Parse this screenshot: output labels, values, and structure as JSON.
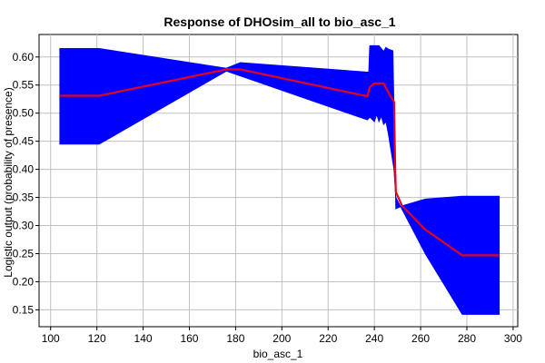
{
  "chart_data": {
    "type": "line",
    "title": "Response of DHOsim_all to bio_asc_1",
    "xlabel": "bio_asc_1",
    "ylabel": "Logistic output (probability of presence)",
    "xlim": [
      95,
      302
    ],
    "ylim": [
      0.12,
      0.64
    ],
    "xticks": [
      100,
      120,
      140,
      160,
      180,
      200,
      220,
      240,
      260,
      280,
      300
    ],
    "yticks": [
      0.15,
      0.2,
      0.25,
      0.3,
      0.35,
      0.4,
      0.45,
      0.5,
      0.55,
      0.6
    ],
    "ytick_labels": [
      "0.15",
      "0.20",
      "0.25",
      "0.30",
      "0.35",
      "0.40",
      "0.45",
      "0.50",
      "0.55",
      "0.60"
    ],
    "grid": true,
    "colors": {
      "band": "#0000ff",
      "line": "#e8001c",
      "grid": "#c0c0c0",
      "axis": "#000000"
    },
    "series": [
      {
        "kind": "mean",
        "x": [
          104,
          121,
          176,
          182,
          237,
          238,
          240,
          244,
          245,
          247,
          248.5,
          249,
          249.3,
          252,
          262,
          278,
          294
        ],
        "y": [
          0.531,
          0.531,
          0.578,
          0.578,
          0.53,
          0.546,
          0.553,
          0.553,
          0.545,
          0.53,
          0.52,
          0.4,
          0.36,
          0.335,
          0.293,
          0.247,
          0.247
        ]
      }
    ],
    "band": {
      "upper": {
        "x": [
          104,
          121,
          176,
          182,
          237,
          237.6,
          238,
          242,
          244,
          245,
          246,
          248,
          248.5,
          249.3,
          252,
          262,
          278,
          294
        ],
        "y": [
          0.615,
          0.615,
          0.58,
          0.59,
          0.573,
          0.573,
          0.62,
          0.62,
          0.61,
          0.617,
          0.614,
          0.611,
          0.5,
          0.33,
          0.335,
          0.347,
          0.352,
          0.352
        ]
      },
      "lower": {
        "x": [
          104,
          121,
          176,
          237,
          238,
          240,
          241,
          242,
          243,
          244,
          245,
          246,
          248.5,
          249.3,
          262,
          278,
          294
        ],
        "y": [
          0.445,
          0.445,
          0.575,
          0.488,
          0.493,
          0.485,
          0.498,
          0.485,
          0.495,
          0.48,
          0.485,
          0.465,
          0.4,
          0.35,
          0.25,
          0.142,
          0.142
        ]
      }
    }
  }
}
